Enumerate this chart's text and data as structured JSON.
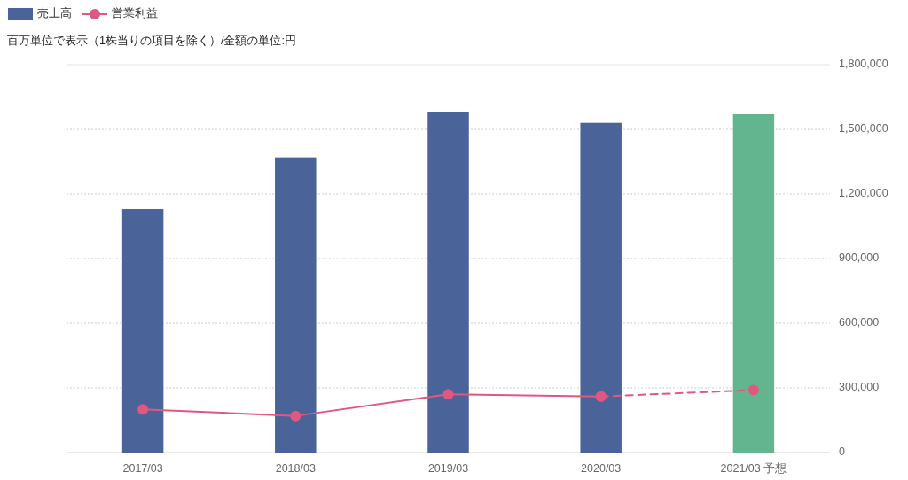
{
  "chart_data": {
    "type": "bar",
    "subtitle": "百万単位で表示（1株当りの項目を除く）/金額の単位:円",
    "categories": [
      "2017/03",
      "2018/03",
      "2019/03",
      "2020/03",
      "2021/03 予想"
    ],
    "series": [
      {
        "name": "売上高",
        "color": "#4a6499",
        "colors": [
          "#4a6499",
          "#4a6499",
          "#4a6499",
          "#4a6499",
          "#63b58f"
        ],
        "values": [
          1130000,
          1370000,
          1580000,
          1530000,
          1570000
        ]
      },
      {
        "name": "営業利益",
        "type": "line",
        "color": "#e0577f",
        "marker": "circle",
        "line_style": "solid",
        "values": [
          200000,
          170000,
          270000,
          260000,
          null
        ]
      },
      {
        "type": "line",
        "color": "#e0577f",
        "marker": "circle",
        "line_style": "dashed",
        "values": [
          null,
          null,
          null,
          260000,
          290000
        ]
      }
    ],
    "ylim": [
      0,
      1800000
    ],
    "yticks": [
      0,
      {
        "value": 300000,
        "label": "300,000"
      },
      {
        "value": 600000,
        "label": "600,000"
      },
      {
        "value": 900000,
        "label": "900,000"
      },
      {
        "value": 1200000,
        "label": "1,200,000"
      },
      {
        "value": 1500000,
        "label": "1,500,000"
      },
      {
        "value": 1800000,
        "label": "1,800,000"
      }
    ],
    "grid": "y",
    "legend": "top left"
  }
}
